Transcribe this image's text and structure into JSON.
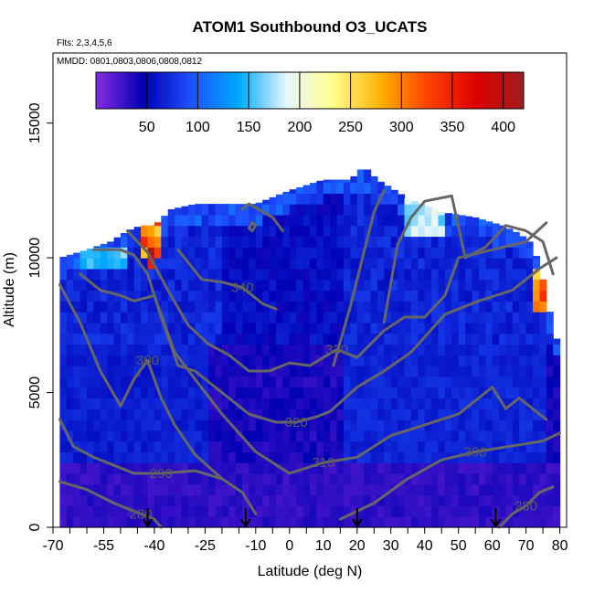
{
  "chart_data": {
    "type": "heatmap",
    "title": "ATOM1 Southbound O3_UCATS",
    "flights_note": "Flts: 2,3,4,5,6",
    "dates_note": "MMDD: 0801,0803,0806,0808,0812",
    "xlabel": "Latitude (deg N)",
    "ylabel": "Altitude (m)",
    "xlim": [
      -70,
      82
    ],
    "ylim": [
      0,
      17600
    ],
    "x_ticks": [
      -70,
      -55,
      -40,
      -25,
      -10,
      0,
      10,
      20,
      30,
      40,
      50,
      60,
      70,
      80
    ],
    "y_ticks": [
      0,
      5000,
      10000,
      15000
    ],
    "colorbar": {
      "min": 0,
      "max": 420,
      "ticks": [
        50,
        100,
        150,
        200,
        250,
        300,
        350,
        400
      ],
      "colors": [
        "#8a2be2",
        "#0000b4",
        "#1e50ff",
        "#00aaff",
        "#e6f6ff",
        "#ffff8c",
        "#ffb000",
        "#ff4000",
        "#dd0000",
        "#a01e1e"
      ]
    },
    "coverage_top_profile": {
      "lat": [
        -68,
        -60,
        -53,
        -48,
        -44,
        -40,
        -35,
        -28,
        -20,
        -10,
        0,
        10,
        18,
        22,
        26,
        30,
        35,
        45,
        55,
        63,
        68,
        72,
        75,
        76,
        78,
        79,
        80
      ],
      "alt_top": [
        10000,
        10300,
        10600,
        11000,
        11200,
        11200,
        11800,
        12000,
        12000,
        12000,
        12500,
        12900,
        12900,
        13400,
        12900,
        12600,
        12200,
        11700,
        11500,
        11200,
        10900,
        10500,
        9200,
        8500,
        7500,
        7000,
        6000
      ]
    },
    "stratospheric_patches": [
      {
        "lat": [
          -44,
          -38
        ],
        "alt": [
          10000,
          11500
        ],
        "o3": 300
      },
      {
        "lat": [
          -41,
          -40
        ],
        "alt": [
          9600,
          10300
        ],
        "o3": 370
      },
      {
        "lat": [
          72,
          75
        ],
        "alt": [
          8200,
          9500
        ],
        "o3": 300
      },
      {
        "lat": [
          75,
          76
        ],
        "alt": [
          9700,
          10100
        ],
        "o3": 370
      },
      {
        "lat": [
          35,
          45
        ],
        "alt": [
          11000,
          12200
        ],
        "o3": 170
      },
      {
        "lat": [
          -62,
          -48
        ],
        "alt": [
          9700,
          10500
        ],
        "o3": 160
      }
    ],
    "theta_contours": [
      {
        "label": "280",
        "lat": [
          -68,
          -60,
          -52,
          -44,
          -40,
          -38
        ],
        "alt": [
          1700,
          1400,
          900,
          500,
          300,
          0
        ]
      },
      {
        "label": "280",
        "lat": [
          62,
          66,
          70,
          74,
          78
        ],
        "alt": [
          0,
          500,
          800,
          1300,
          1500
        ]
      },
      {
        "label": "290",
        "lat": [
          -68,
          -64,
          -58,
          -52,
          -46,
          -38,
          -28,
          -20,
          -14,
          -10
        ],
        "alt": [
          4000,
          3000,
          2600,
          2300,
          2000,
          2000,
          2100,
          1800,
          1300,
          500
        ]
      },
      {
        "label": "300",
        "lat": [
          -68,
          -62,
          -56,
          -50,
          -46,
          -42,
          -38,
          -34,
          -28,
          -20
        ],
        "alt": [
          9000,
          7600,
          5800,
          4500,
          5500,
          6200,
          4800,
          3800,
          2700,
          1800
        ]
      },
      {
        "label": "300",
        "lat": [
          15,
          25,
          35,
          45,
          55,
          65,
          75,
          80
        ],
        "alt": [
          300,
          900,
          1800,
          2500,
          2800,
          3000,
          3200,
          3500
        ]
      },
      {
        "label": "310",
        "lat": [
          -62,
          -56,
          -50,
          -46,
          -40,
          -34,
          -28,
          -20,
          -10,
          0,
          10,
          20,
          30,
          40,
          50,
          60,
          64,
          68,
          72,
          76
        ],
        "alt": [
          9400,
          8800,
          8600,
          8400,
          8600,
          6500,
          5500,
          4200,
          2800,
          2000,
          2400,
          2600,
          3400,
          3800,
          4200,
          5200,
          4400,
          4800,
          4400,
          4000
        ]
      },
      {
        "label": "320",
        "lat": [
          -58,
          -50,
          -46,
          -42,
          -38,
          -33,
          -28,
          -20,
          -12,
          -4,
          2,
          8,
          12,
          20,
          28,
          36,
          46,
          56,
          66,
          74,
          79
        ],
        "alt": [
          10300,
          10300,
          10100,
          9400,
          7800,
          6000,
          5800,
          5000,
          4200,
          3900,
          3900,
          4100,
          4300,
          5200,
          5800,
          6500,
          7900,
          8400,
          8800,
          9600,
          10000
        ]
      },
      {
        "label": "330",
        "lat": [
          -48,
          -42,
          -36,
          -30,
          -24,
          -18,
          -12,
          -6,
          0,
          6,
          14,
          20,
          28,
          34,
          40,
          46,
          50,
          60,
          70,
          76
        ],
        "alt": [
          11000,
          10200,
          8800,
          7500,
          6800,
          6400,
          5800,
          5800,
          6100,
          6000,
          6600,
          6300,
          7300,
          7800,
          7800,
          8600,
          10000,
          10300,
          10600,
          11300
        ]
      },
      {
        "label": "340",
        "lat": [
          -33,
          -26,
          -20,
          -14,
          -8,
          -4
        ],
        "alt": [
          10300,
          9200,
          9100,
          8900,
          8300,
          8100
        ]
      },
      {
        "label": "",
        "lat": [
          -14,
          -12,
          -5,
          -2
        ],
        "alt": [
          11800,
          12000,
          11500,
          11000
        ]
      },
      {
        "label": "",
        "lat": [
          28,
          32,
          36,
          40,
          48,
          52,
          58,
          64,
          70,
          75,
          78
        ],
        "alt": [
          7600,
          10500,
          11500,
          12100,
          12300,
          10000,
          10400,
          11200,
          11000,
          10600,
          9400
        ]
      },
      {
        "label": "",
        "lat": [
          13,
          18,
          22,
          25,
          28
        ],
        "alt": [
          6000,
          8200,
          10200,
          11700,
          12500
        ]
      },
      {
        "label": "",
        "lat": [
          -11,
          -10,
          -11,
          -12,
          -11
        ],
        "alt": [
          11000,
          11200,
          11300,
          11100,
          11000
        ]
      }
    ],
    "sonde_markers": {
      "lat": [
        -42,
        -13,
        20,
        61
      ],
      "symbol": "down-arrow"
    }
  }
}
